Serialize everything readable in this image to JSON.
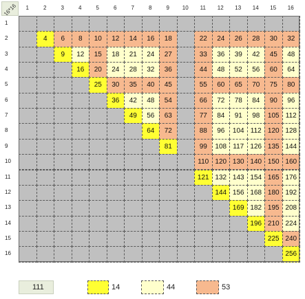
{
  "corner_label": "16*16",
  "column_headers": [
    "1",
    "2",
    "3",
    "4",
    "5",
    "6",
    "7",
    "8",
    "9",
    "10",
    "11",
    "12",
    "13",
    "14",
    "15",
    "16"
  ],
  "row_headers": [
    "1",
    "2",
    "3",
    "4",
    "5",
    "6",
    "7",
    "8",
    "9",
    "10",
    "11",
    "12",
    "13",
    "14",
    "15",
    "16"
  ],
  "colors": {
    "gray": "#c0c0c0",
    "yellow": "#ffff33",
    "pale": "#ffffcc",
    "orange": "#f7b98f",
    "legend_green": "#e9eedd"
  },
  "rows": [
    {
      "row": 2,
      "cells": [
        {
          "col": 2,
          "v": "4",
          "c": "yellow"
        },
        {
          "col": 3,
          "v": "6",
          "c": "orange"
        },
        {
          "col": 4,
          "v": "8",
          "c": "orange"
        },
        {
          "col": 5,
          "v": "10",
          "c": "orange"
        },
        {
          "col": 6,
          "v": "12",
          "c": "orange"
        },
        {
          "col": 7,
          "v": "14",
          "c": "orange"
        },
        {
          "col": 8,
          "v": "16",
          "c": "orange"
        },
        {
          "col": 9,
          "v": "18",
          "c": "orange"
        },
        {
          "col": 11,
          "v": "22",
          "c": "orange"
        },
        {
          "col": 12,
          "v": "24",
          "c": "orange"
        },
        {
          "col": 13,
          "v": "26",
          "c": "orange"
        },
        {
          "col": 14,
          "v": "28",
          "c": "orange"
        },
        {
          "col": 15,
          "v": "30",
          "c": "orange"
        },
        {
          "col": 16,
          "v": "32",
          "c": "orange"
        }
      ]
    },
    {
      "row": 3,
      "cells": [
        {
          "col": 3,
          "v": "9",
          "c": "yellow"
        },
        {
          "col": 4,
          "v": "12",
          "c": "pale"
        },
        {
          "col": 5,
          "v": "15",
          "c": "orange"
        },
        {
          "col": 6,
          "v": "18",
          "c": "pale"
        },
        {
          "col": 7,
          "v": "21",
          "c": "pale"
        },
        {
          "col": 8,
          "v": "24",
          "c": "pale"
        },
        {
          "col": 9,
          "v": "27",
          "c": "orange"
        },
        {
          "col": 11,
          "v": "33",
          "c": "orange"
        },
        {
          "col": 12,
          "v": "36",
          "c": "pale"
        },
        {
          "col": 13,
          "v": "39",
          "c": "pale"
        },
        {
          "col": 14,
          "v": "42",
          "c": "pale"
        },
        {
          "col": 15,
          "v": "45",
          "c": "orange"
        },
        {
          "col": 16,
          "v": "48",
          "c": "pale"
        }
      ]
    },
    {
      "row": 4,
      "cells": [
        {
          "col": 4,
          "v": "16",
          "c": "yellow"
        },
        {
          "col": 5,
          "v": "20",
          "c": "orange"
        },
        {
          "col": 6,
          "v": "24",
          "c": "pale"
        },
        {
          "col": 7,
          "v": "28",
          "c": "pale"
        },
        {
          "col": 8,
          "v": "32",
          "c": "pale"
        },
        {
          "col": 9,
          "v": "36",
          "c": "orange"
        },
        {
          "col": 11,
          "v": "44",
          "c": "orange"
        },
        {
          "col": 12,
          "v": "48",
          "c": "pale"
        },
        {
          "col": 13,
          "v": "52",
          "c": "pale"
        },
        {
          "col": 14,
          "v": "56",
          "c": "pale"
        },
        {
          "col": 15,
          "v": "60",
          "c": "orange"
        },
        {
          "col": 16,
          "v": "64",
          "c": "pale"
        }
      ]
    },
    {
      "row": 5,
      "cells": [
        {
          "col": 5,
          "v": "25",
          "c": "yellow"
        },
        {
          "col": 6,
          "v": "30",
          "c": "orange"
        },
        {
          "col": 7,
          "v": "35",
          "c": "orange"
        },
        {
          "col": 8,
          "v": "40",
          "c": "orange"
        },
        {
          "col": 9,
          "v": "45",
          "c": "orange"
        },
        {
          "col": 11,
          "v": "55",
          "c": "orange"
        },
        {
          "col": 12,
          "v": "60",
          "c": "orange"
        },
        {
          "col": 13,
          "v": "65",
          "c": "orange"
        },
        {
          "col": 14,
          "v": "70",
          "c": "orange"
        },
        {
          "col": 15,
          "v": "75",
          "c": "orange"
        },
        {
          "col": 16,
          "v": "80",
          "c": "orange"
        }
      ]
    },
    {
      "row": 6,
      "cells": [
        {
          "col": 6,
          "v": "36",
          "c": "yellow"
        },
        {
          "col": 7,
          "v": "42",
          "c": "pale"
        },
        {
          "col": 8,
          "v": "48",
          "c": "pale"
        },
        {
          "col": 9,
          "v": "54",
          "c": "orange"
        },
        {
          "col": 11,
          "v": "66",
          "c": "orange"
        },
        {
          "col": 12,
          "v": "72",
          "c": "pale"
        },
        {
          "col": 13,
          "v": "78",
          "c": "pale"
        },
        {
          "col": 14,
          "v": "84",
          "c": "pale"
        },
        {
          "col": 15,
          "v": "90",
          "c": "orange"
        },
        {
          "col": 16,
          "v": "96",
          "c": "pale"
        }
      ]
    },
    {
      "row": 7,
      "cells": [
        {
          "col": 7,
          "v": "49",
          "c": "yellow"
        },
        {
          "col": 8,
          "v": "56",
          "c": "pale"
        },
        {
          "col": 9,
          "v": "63",
          "c": "orange"
        },
        {
          "col": 11,
          "v": "77",
          "c": "orange"
        },
        {
          "col": 12,
          "v": "84",
          "c": "pale"
        },
        {
          "col": 13,
          "v": "91",
          "c": "pale"
        },
        {
          "col": 14,
          "v": "98",
          "c": "pale"
        },
        {
          "col": 15,
          "v": "105",
          "c": "orange"
        },
        {
          "col": 16,
          "v": "112",
          "c": "pale"
        }
      ]
    },
    {
      "row": 8,
      "cells": [
        {
          "col": 8,
          "v": "64",
          "c": "yellow"
        },
        {
          "col": 9,
          "v": "72",
          "c": "orange"
        },
        {
          "col": 11,
          "v": "88",
          "c": "orange"
        },
        {
          "col": 12,
          "v": "96",
          "c": "pale"
        },
        {
          "col": 13,
          "v": "104",
          "c": "pale"
        },
        {
          "col": 14,
          "v": "112",
          "c": "pale"
        },
        {
          "col": 15,
          "v": "120",
          "c": "orange"
        },
        {
          "col": 16,
          "v": "128",
          "c": "pale"
        }
      ]
    },
    {
      "row": 9,
      "cells": [
        {
          "col": 9,
          "v": "81",
          "c": "yellow"
        },
        {
          "col": 11,
          "v": "99",
          "c": "orange"
        },
        {
          "col": 12,
          "v": "108",
          "c": "pale"
        },
        {
          "col": 13,
          "v": "117",
          "c": "pale"
        },
        {
          "col": 14,
          "v": "126",
          "c": "pale"
        },
        {
          "col": 15,
          "v": "135",
          "c": "orange"
        },
        {
          "col": 16,
          "v": "144",
          "c": "pale"
        }
      ]
    },
    {
      "row": 10,
      "cells": [
        {
          "col": 11,
          "v": "110",
          "c": "orange"
        },
        {
          "col": 12,
          "v": "120",
          "c": "orange"
        },
        {
          "col": 13,
          "v": "130",
          "c": "orange"
        },
        {
          "col": 14,
          "v": "140",
          "c": "orange"
        },
        {
          "col": 15,
          "v": "150",
          "c": "orange"
        },
        {
          "col": 16,
          "v": "160",
          "c": "orange"
        }
      ]
    },
    {
      "row": 11,
      "cells": [
        {
          "col": 11,
          "v": "121",
          "c": "yellow"
        },
        {
          "col": 12,
          "v": "132",
          "c": "pale"
        },
        {
          "col": 13,
          "v": "143",
          "c": "pale"
        },
        {
          "col": 14,
          "v": "154",
          "c": "pale"
        },
        {
          "col": 15,
          "v": "165",
          "c": "orange"
        },
        {
          "col": 16,
          "v": "176",
          "c": "pale"
        }
      ]
    },
    {
      "row": 12,
      "cells": [
        {
          "col": 12,
          "v": "144",
          "c": "yellow"
        },
        {
          "col": 13,
          "v": "156",
          "c": "pale"
        },
        {
          "col": 14,
          "v": "168",
          "c": "pale"
        },
        {
          "col": 15,
          "v": "180",
          "c": "orange"
        },
        {
          "col": 16,
          "v": "192",
          "c": "pale"
        }
      ]
    },
    {
      "row": 13,
      "cells": [
        {
          "col": 13,
          "v": "169",
          "c": "yellow"
        },
        {
          "col": 14,
          "v": "182",
          "c": "pale"
        },
        {
          "col": 15,
          "v": "195",
          "c": "orange"
        },
        {
          "col": 16,
          "v": "208",
          "c": "pale"
        }
      ]
    },
    {
      "row": 14,
      "cells": [
        {
          "col": 14,
          "v": "196",
          "c": "yellow"
        },
        {
          "col": 15,
          "v": "210",
          "c": "orange"
        },
        {
          "col": 16,
          "v": "224",
          "c": "pale"
        }
      ]
    },
    {
      "row": 15,
      "cells": [
        {
          "col": 15,
          "v": "225",
          "c": "yellow"
        },
        {
          "col": 16,
          "v": "240",
          "c": "orange"
        }
      ]
    },
    {
      "row": 16,
      "cells": [
        {
          "col": 16,
          "v": "256",
          "c": "yellow"
        }
      ]
    }
  ],
  "legend": [
    {
      "label": "111",
      "c": "legend_green"
    },
    {
      "label": "14",
      "c": "yellow"
    },
    {
      "label": "44",
      "c": "pale"
    },
    {
      "label": "53",
      "c": "orange"
    }
  ]
}
